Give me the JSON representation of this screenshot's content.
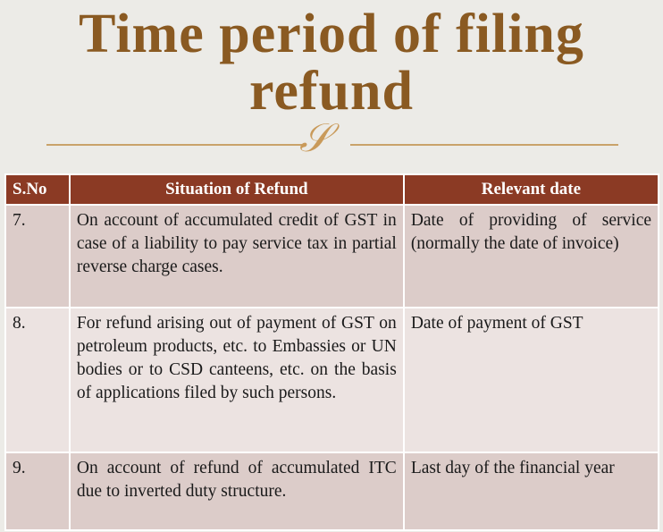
{
  "title": {
    "line1": "Time period of filing",
    "line2": "refund"
  },
  "colors": {
    "title": "#8a5a22",
    "header_bg": "#8b3a24",
    "row_dark": "#dcccc9",
    "row_light": "#ece3e1",
    "rule": "#c9a26a"
  },
  "table": {
    "headers": [
      "S.No",
      "Situation of Refund",
      "Relevant date"
    ],
    "rows": [
      {
        "sno": "7.",
        "situation": "On account of accumulated credit of GST in case of a liability to pay service tax in partial reverse charge cases.",
        "date": "Date of providing of service (normally the date of invoice)"
      },
      {
        "sno": "8.",
        "situation": "For refund arising out of payment of GST on petroleum products, etc. to Embassies or UN bodies or to CSD canteens, etc. on the basis of applications filed by such persons.",
        "date": "Date of payment of GST"
      },
      {
        "sno": "9.",
        "situation": "On account of refund of accumulated ITC due to inverted duty structure.",
        "date": "Last day of the financial year"
      }
    ]
  }
}
